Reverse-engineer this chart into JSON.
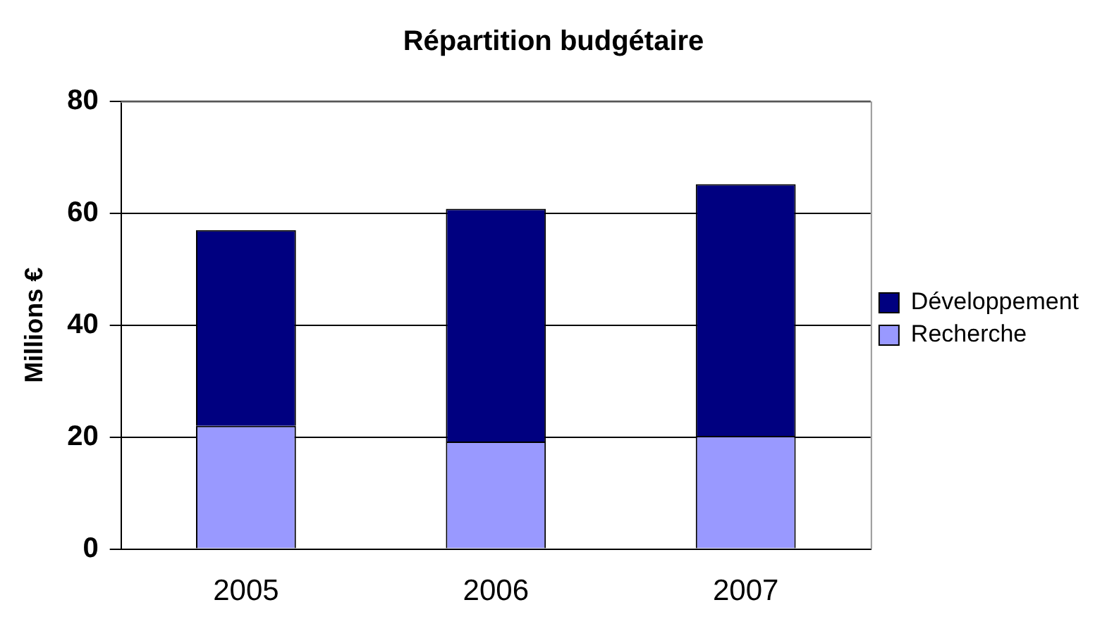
{
  "chart_data": {
    "type": "bar",
    "title": "Répartition budgétaire",
    "ylabel": "Millions €",
    "categories": [
      "2005",
      "2006",
      "2007"
    ],
    "stacked": true,
    "ylim": [
      0,
      80
    ],
    "yticks": [
      0,
      20,
      40,
      60,
      80
    ],
    "grid": "y",
    "legend": "right",
    "series": [
      {
        "name": "Recherche",
        "color": "#9999ff",
        "values": [
          22,
          19.2,
          20.2
        ]
      },
      {
        "name": "Développement",
        "color": "#000080",
        "values": [
          35,
          41.6,
          45
        ]
      }
    ]
  }
}
